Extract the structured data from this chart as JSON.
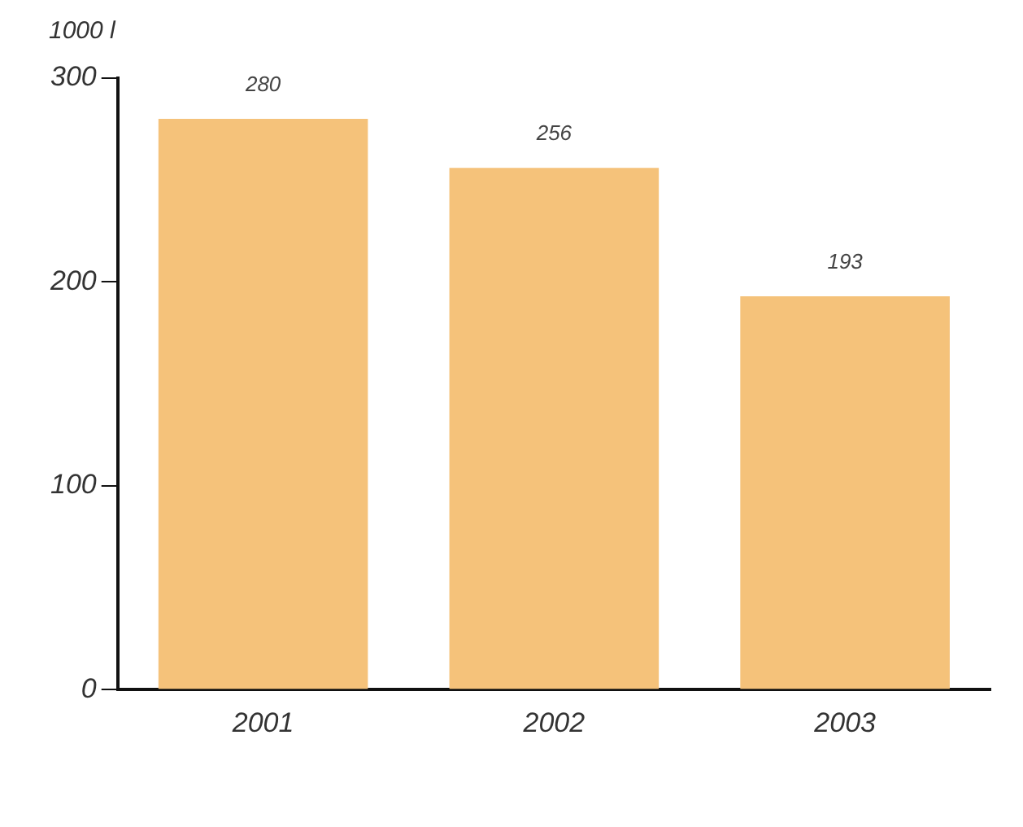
{
  "chart_data": {
    "type": "bar",
    "ylabel": "1000 l",
    "categories": [
      "2001",
      "2002",
      "2003"
    ],
    "series": [
      {
        "color": "#f5c27a",
        "values": [
          280,
          256,
          193
        ]
      }
    ],
    "ylim": [
      0,
      300
    ],
    "yticks": [
      0,
      100,
      200,
      300
    ],
    "data_labels": true,
    "grid": false,
    "legend": false
  }
}
